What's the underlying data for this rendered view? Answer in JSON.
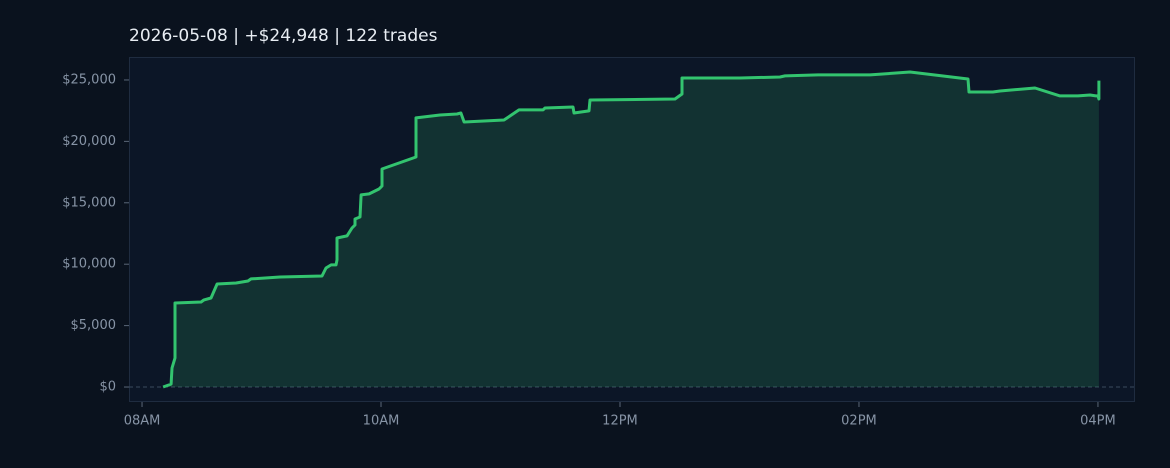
{
  "chart_data": {
    "type": "area-line",
    "title": "2026-05-08  |  +$24,948  |  122 trades",
    "color": "#33c46f",
    "x": [
      8.176,
      8.243,
      8.251,
      8.276,
      8.276,
      8.494,
      8.519,
      8.577,
      8.628,
      8.787,
      8.887,
      8.912,
      9.155,
      9.506,
      9.54,
      9.582,
      9.623,
      9.632,
      9.632,
      9.715,
      9.757,
      9.782,
      9.782,
      9.824,
      9.833,
      9.9,
      9.983,
      10.008,
      10.008,
      10.293,
      10.293,
      10.494,
      10.636,
      10.669,
      10.695,
      11.029,
      11.155,
      11.356,
      11.372,
      11.607,
      11.615,
      11.741,
      11.749,
      12.46,
      12.519,
      12.519,
      13.004,
      13.339,
      13.381,
      13.657,
      14.092,
      14.427,
      14.912,
      14.921,
      15.121,
      15.18,
      15.473,
      15.682,
      15.833,
      15.933,
      15.983,
      16.0,
      16.008,
      16.008
    ],
    "values": [
      0,
      240,
      1550,
      2360,
      6840,
      6920,
      7090,
      7250,
      8390,
      8470,
      8630,
      8800,
      8960,
      9040,
      9690,
      9940,
      9940,
      10340,
      12130,
      12300,
      12950,
      13190,
      13680,
      13840,
      15640,
      15720,
      16120,
      16370,
      17750,
      18730,
      21910,
      22150,
      22230,
      22310,
      21580,
      21740,
      22560,
      22560,
      22720,
      22800,
      22310,
      22480,
      23370,
      23450,
      23860,
      25160,
      25160,
      25240,
      25330,
      25410,
      25410,
      25650,
      25080,
      24020,
      24020,
      24100,
      24350,
      23700,
      23700,
      23780,
      23700,
      23700,
      23450,
      24948
    ],
    "xlim": [
      7.891,
      16.31
    ],
    "xticks": [
      {
        "value": 8,
        "label": "08AM"
      },
      {
        "value": 10,
        "label": "10AM"
      },
      {
        "value": 12,
        "label": "12PM"
      },
      {
        "value": 14,
        "label": "02PM"
      },
      {
        "value": 16,
        "label": "04PM"
      }
    ],
    "ylim": [
      -1220,
      26870
    ],
    "yticks": [
      {
        "value": 0,
        "label": "$0"
      },
      {
        "value": 5000,
        "label": "$5,000"
      },
      {
        "value": 10000,
        "label": "$10,000"
      },
      {
        "value": 15000,
        "label": "$15,000"
      },
      {
        "value": 20000,
        "label": "$20,000"
      },
      {
        "value": 25000,
        "label": "$25,000"
      }
    ],
    "grid": false
  }
}
